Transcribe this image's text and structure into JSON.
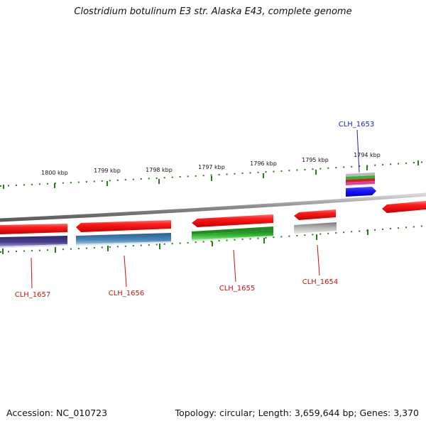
{
  "title": "Clostridium botulinum E3 str. Alaska E43, complete genome",
  "footer": {
    "accession": "Accession: NC_010723",
    "info": "Topology: circular; Length: 3,659,644 bp; Genes: 3,370"
  },
  "scale_ticks": [
    "1800 kbp",
    "1799 kbp",
    "1798 kbp",
    "1797 kbp",
    "1796 kbp",
    "1795 kbp",
    "1794 kbp"
  ],
  "gene_labels": [
    {
      "id": "CLH_1653",
      "color": "#1a1acc"
    },
    {
      "id": "CLH_1654",
      "color": "#cc1111"
    },
    {
      "id": "CLH_1655",
      "color": "#cc1111"
    },
    {
      "id": "CLH_1656",
      "color": "#cc1111"
    },
    {
      "id": "CLH_1657",
      "color": "#cc1111"
    }
  ],
  "colors": {
    "gene_red": "#ff1111",
    "backbone": "#8a8a8a",
    "tick_green": "#2a7a1a",
    "cds_blue": "#4a86b8",
    "cds_purple": "#4a3f8c",
    "cds_green": "#2fb52f",
    "cds_gray": "#b8b8b8",
    "cds_bright_blue": "#1010ff"
  }
}
